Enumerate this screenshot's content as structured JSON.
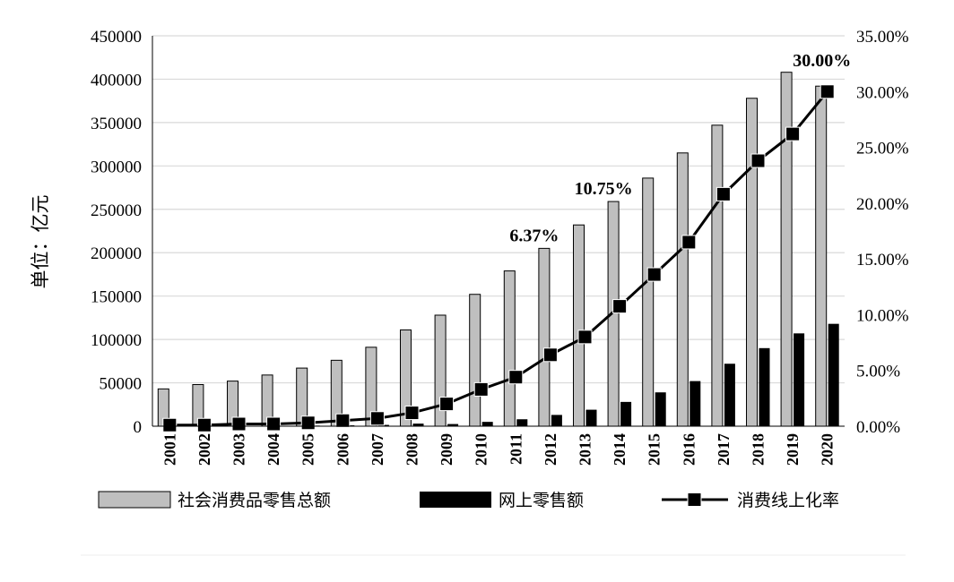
{
  "chart_data": {
    "type": "bar",
    "categories": [
      "2001",
      "2002",
      "2003",
      "2004",
      "2005",
      "2006",
      "2007",
      "2008",
      "2009",
      "2010",
      "2011",
      "2012",
      "2013",
      "2014",
      "2015",
      "2016",
      "2017",
      "2018",
      "2019",
      "2020"
    ],
    "series": [
      {
        "name": "社会消费品零售总额",
        "kind": "bar",
        "axis": "left",
        "color": "#bfbfbf",
        "values": [
          43000,
          48000,
          52000,
          59000,
          67000,
          76000,
          91000,
          111000,
          128000,
          152000,
          179000,
          205000,
          232000,
          259000,
          286000,
          315000,
          347000,
          378000,
          408000,
          392000
        ]
      },
      {
        "name": "网上零售额",
        "kind": "bar",
        "axis": "left",
        "color": "#000000",
        "values": [
          100,
          200,
          300,
          500,
          700,
          1000,
          1500,
          3000,
          2500,
          5000,
          8000,
          13000,
          19000,
          28000,
          39000,
          52000,
          72000,
          90000,
          107000,
          118000
        ]
      },
      {
        "name": "消费线上化率",
        "kind": "line",
        "axis": "right",
        "color": "#000000",
        "values": [
          0.001,
          0.001,
          0.002,
          0.002,
          0.003,
          0.005,
          0.007,
          0.012,
          0.02,
          0.033,
          0.044,
          0.064,
          0.08,
          0.1075,
          0.136,
          0.165,
          0.208,
          0.238,
          0.262,
          0.3
        ]
      }
    ],
    "ylabel": "单位：亿元",
    "ylim": [
      0,
      450000
    ],
    "yticks": [
      "450000",
      "400000",
      "350000",
      "300000",
      "250000",
      "200000",
      "150000",
      "100000",
      "50000",
      "0"
    ],
    "y2lim": [
      0,
      0.35
    ],
    "y2ticks": [
      "35.00%",
      "30.00%",
      "25.00%",
      "20.00%",
      "15.00%",
      "10.00%",
      "5.00%",
      "0.00%"
    ],
    "annotations": [
      {
        "category": "2012",
        "text": "6.37%"
      },
      {
        "category": "2014",
        "text": "10.75%"
      },
      {
        "category": "2020",
        "text": "30.00%"
      }
    ],
    "grid": true,
    "legend": "bottom"
  }
}
